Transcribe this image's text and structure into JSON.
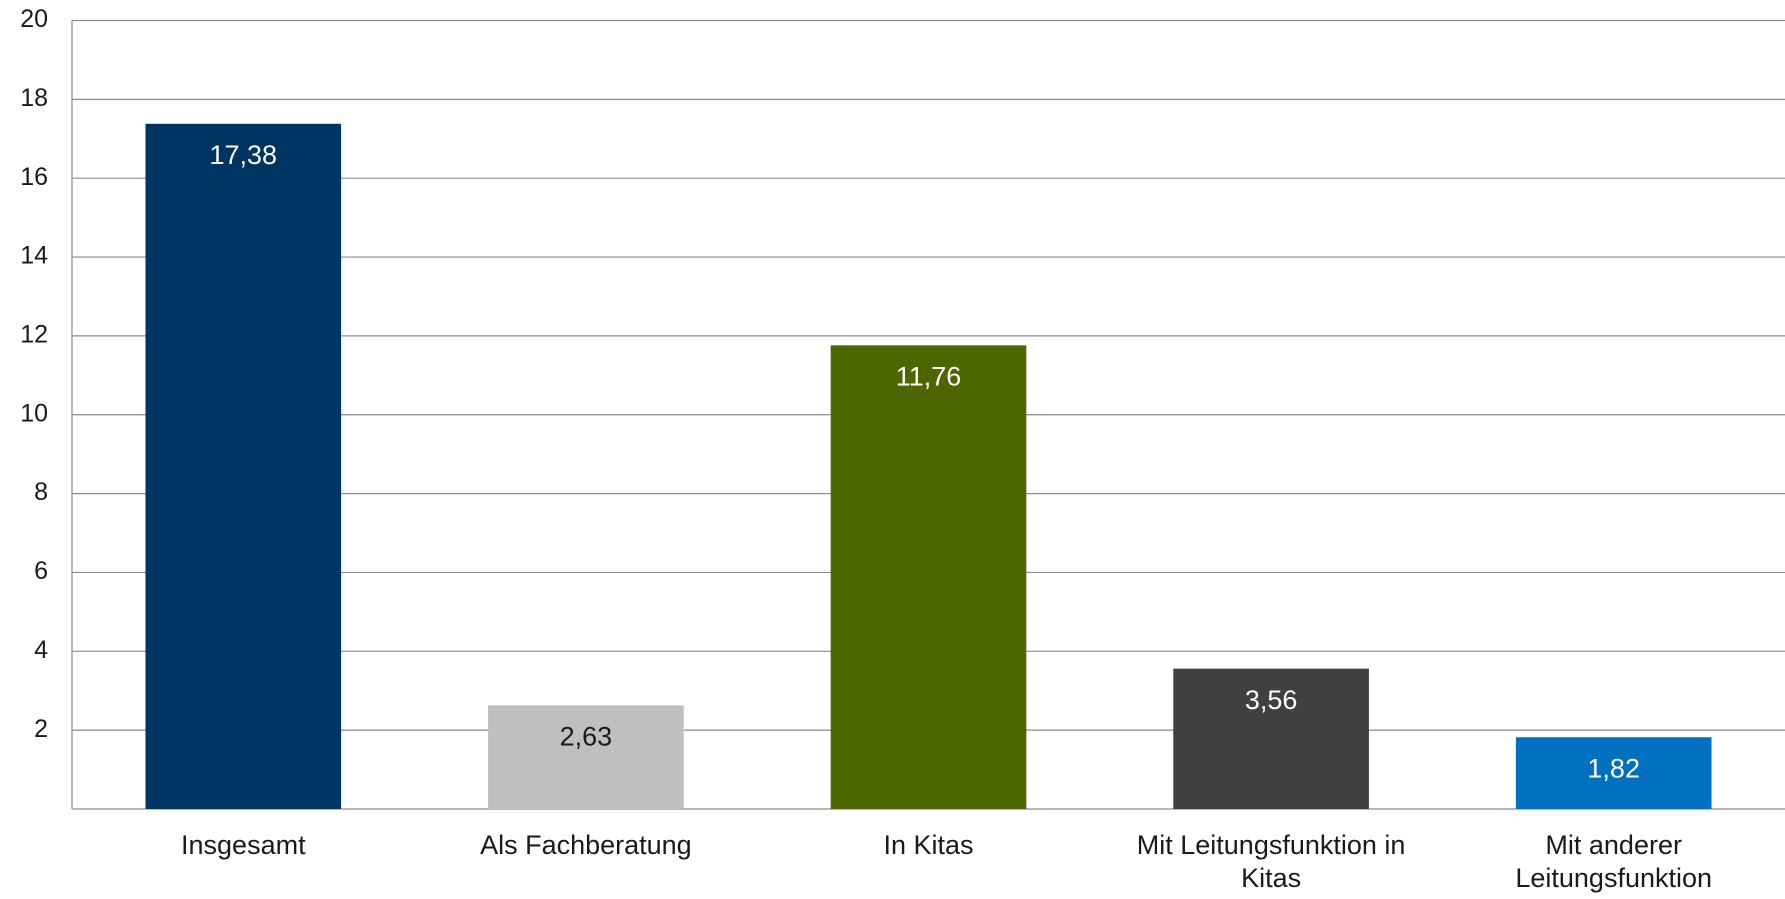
{
  "chart_data": {
    "type": "bar",
    "categories": [
      "Insgesamt",
      "Als Fachberatung",
      "In Kitas",
      "Mit Leitungsfunktion in Kitas",
      "Mit anderer Leitungsfunktion"
    ],
    "values": [
      17.38,
      2.63,
      11.76,
      3.56,
      1.82
    ],
    "value_labels": [
      "17,38",
      "2,63",
      "11,76",
      "3,56",
      "1,82"
    ],
    "colors": [
      "#003462",
      "#bfbfbf",
      "#4d6600",
      "#404040",
      "#0070c0"
    ],
    "ylim": [
      0,
      20
    ],
    "yticks": [
      2,
      4,
      6,
      8,
      10,
      12,
      14,
      16,
      18,
      20
    ],
    "grid": true
  }
}
